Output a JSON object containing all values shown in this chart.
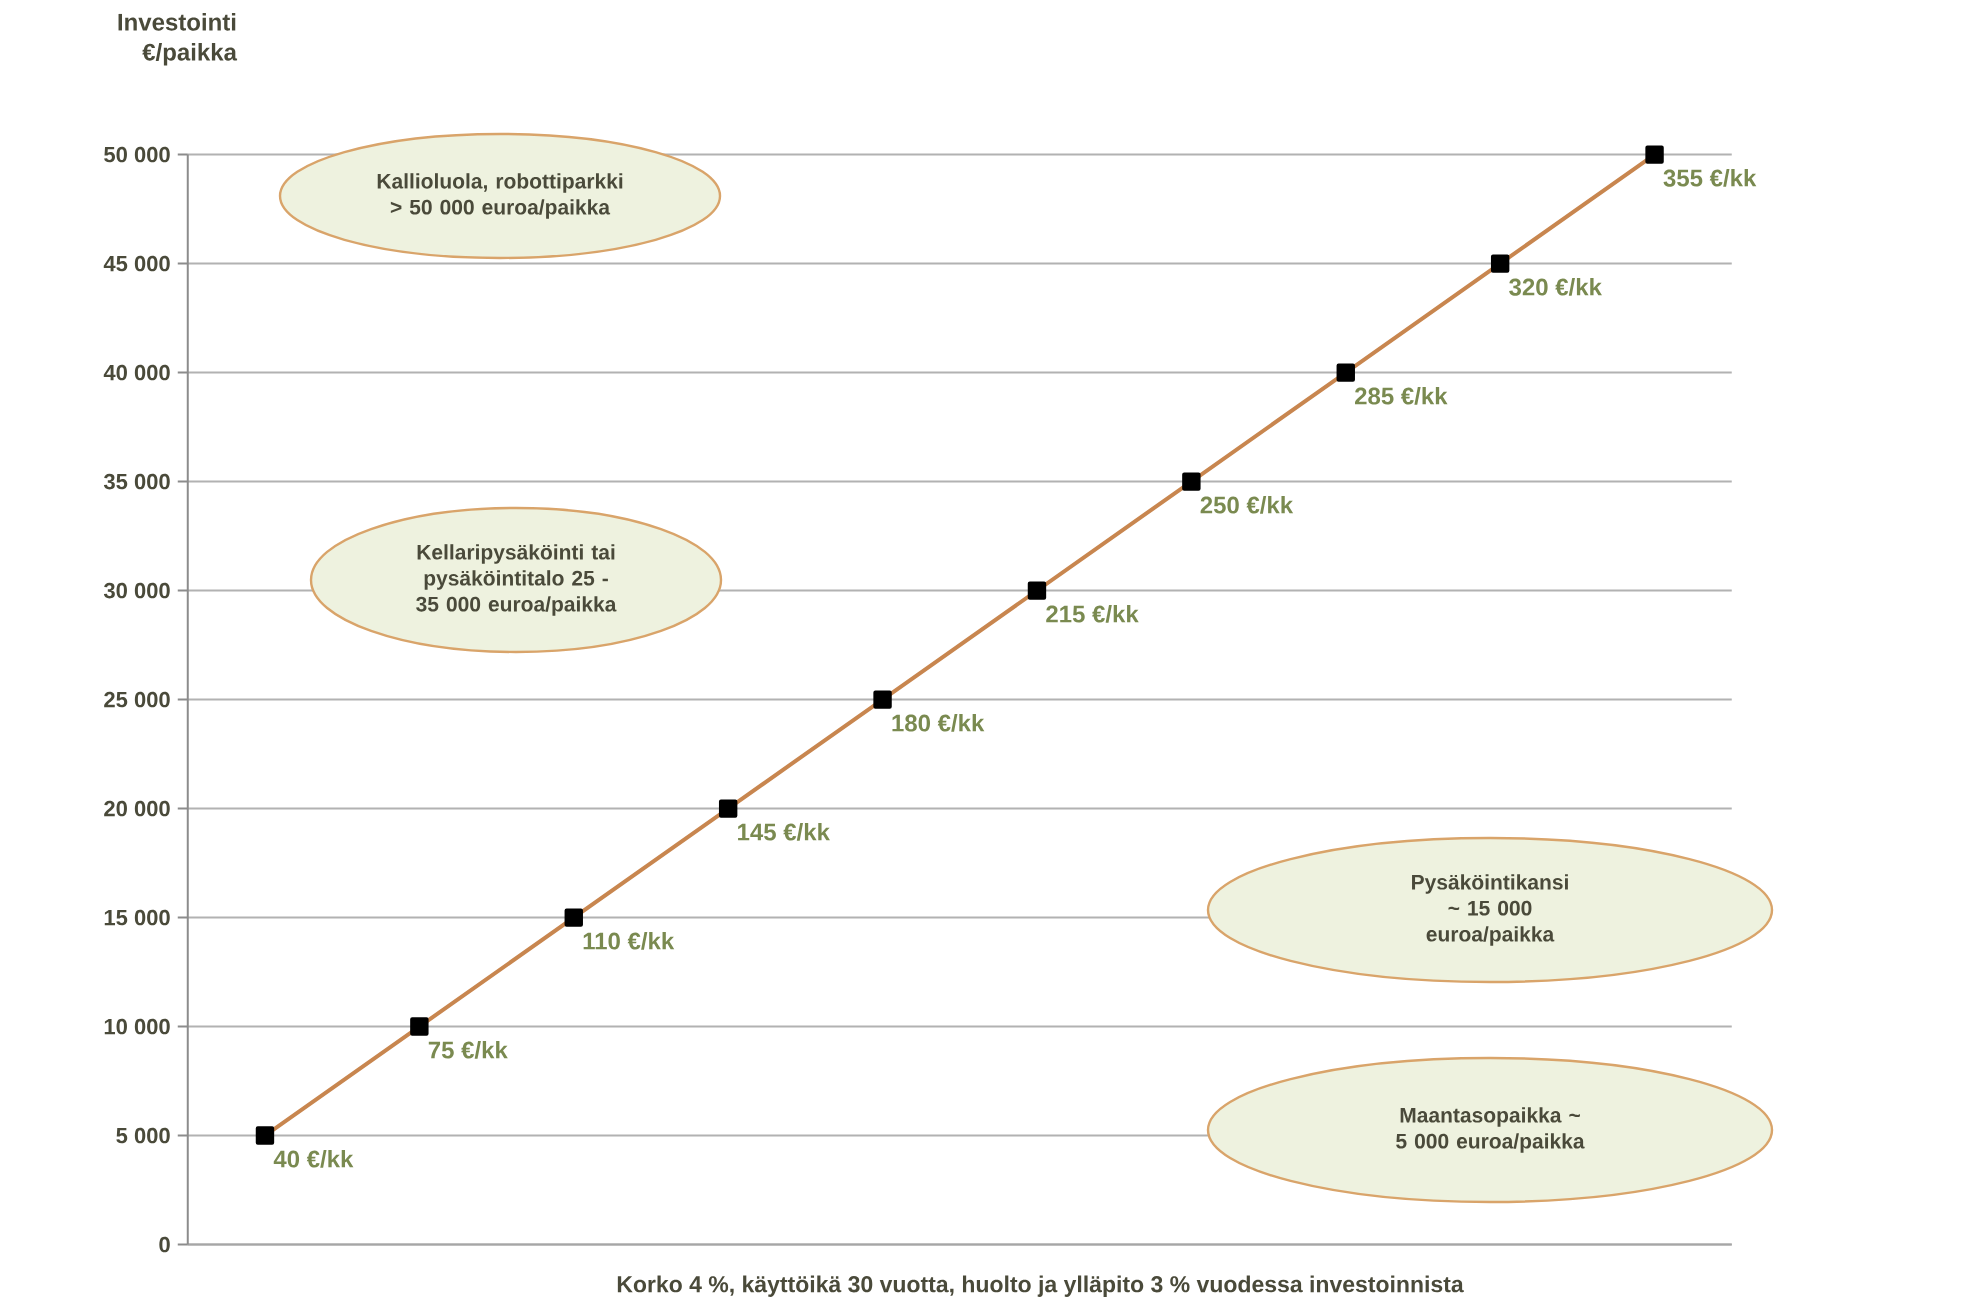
{
  "chart_data": {
    "type": "line",
    "ylabel": "Investointi €/paikka",
    "xlabel": "Korko 4 %, käyttöikä 30 vuotta, huolto ja ylläpito 3 % vuodessa investoinnista",
    "categories": [
      null,
      null,
      null,
      null,
      null,
      null,
      null,
      null,
      null,
      null
    ],
    "series": [
      {
        "color": "#c8864f",
        "values": [
          5000,
          10000,
          15000,
          20000,
          25000,
          30000,
          35000,
          40000,
          45000,
          50000
        ]
      }
    ],
    "marker": "square",
    "ylim": [
      0,
      50000
    ],
    "yticks": [
      0,
      {
        "value": 5000,
        "label": "5 000"
      },
      {
        "value": 10000,
        "label": "10 000"
      },
      {
        "value": 15000,
        "label": "15 000"
      },
      {
        "value": 20000,
        "label": "20 000"
      },
      {
        "value": 25000,
        "label": "25 000"
      },
      {
        "value": 30000,
        "label": "30 000"
      },
      {
        "value": 35000,
        "label": "35 000"
      },
      {
        "value": 40000,
        "label": "40 000"
      },
      {
        "value": 45000,
        "label": "45 000"
      },
      {
        "value": 50000,
        "label": "50 000"
      }
    ],
    "grid": "y",
    "tick_labels": "y",
    "annotations": [
      "Kallioluola, robottiparkki > 50 000 euroa/paikka",
      "Kellaripysäköinti tai pysäköintitalo 25 - 35 000 euroa/paikka",
      "Pysäköintikansi ~ 15 000 euroa/paikka",
      "Maantasopaikka ~ 5 000 euroa/paikka",
      "40 €/kk",
      "75 €/kk",
      "110 €/kk",
      "145 €/kk",
      "180 €/kk",
      "215 €/kk",
      "250 €/kk",
      "285 €/kk",
      "320 €/kk",
      "355 €/kk"
    ]
  }
}
